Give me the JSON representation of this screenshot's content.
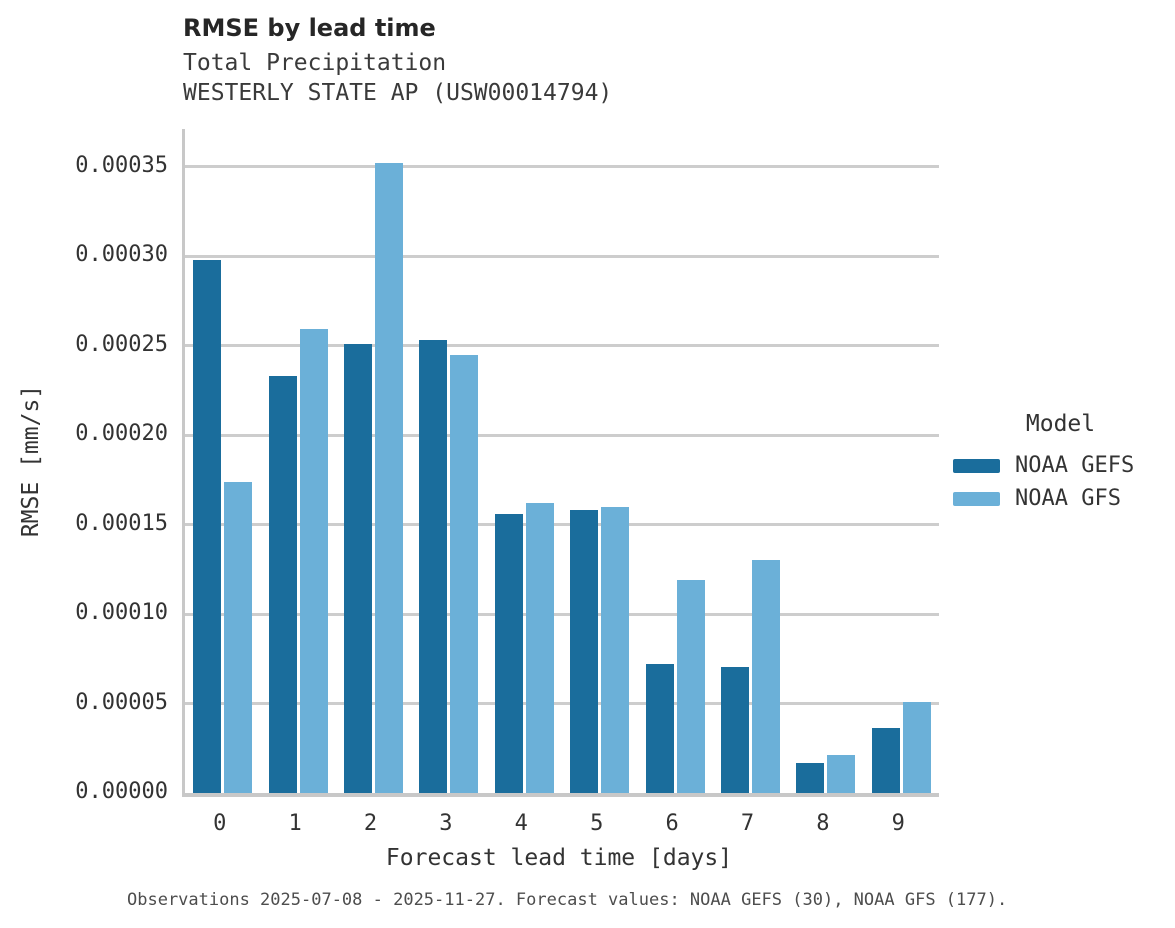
{
  "header": {
    "title": "RMSE by lead time",
    "subtitle_line1": "Total Precipitation",
    "subtitle_line2": "WESTERLY STATE AP (USW00014794)"
  },
  "footer": {
    "text": "Observations 2025-07-08 - 2025-11-27. Forecast values: NOAA GEFS (30), NOAA GFS (177)."
  },
  "legend": {
    "title": "Model",
    "items": [
      {
        "label": "NOAA GEFS",
        "color": "#1a6d9c"
      },
      {
        "label": "NOAA GFS",
        "color": "#6bb0d8"
      }
    ]
  },
  "colors": {
    "gefs_bar": "#1a6d9c",
    "gfs_bar": "#6bb0d8",
    "gridline": "#cdcdcd",
    "axis_spine": "#c8c8c8",
    "text": "#333333",
    "footer_text": "#4d4d4d"
  },
  "chart_data": {
    "type": "bar",
    "title": "RMSE by lead time",
    "subtitle": "Total Precipitation — WESTERLY STATE AP (USW00014794)",
    "xlabel": "Forecast lead time [days]",
    "ylabel": "RMSE [mm/s]",
    "categories": [
      "0",
      "1",
      "2",
      "3",
      "4",
      "5",
      "6",
      "7",
      "8",
      "9"
    ],
    "series": [
      {
        "name": "NOAA GEFS",
        "color": "#1a6d9c",
        "values": [
          0.000298,
          0.000233,
          0.000251,
          0.000253,
          0.000156,
          0.000158,
          7.2e-05,
          7.05e-05,
          1.65e-05,
          3.65e-05
        ]
      },
      {
        "name": "NOAA GFS",
        "color": "#6bb0d8",
        "values": [
          0.000174,
          0.000259,
          0.000352,
          0.000245,
          0.000162,
          0.00016,
          0.000119,
          0.00013,
          2.1e-05,
          5.1e-05
        ]
      }
    ],
    "ylim": [
      0,
      0.000371
    ],
    "yticks": [
      0.0,
      5e-05,
      0.0001,
      0.00015,
      0.0002,
      0.00025,
      0.0003,
      0.00035
    ],
    "ytick_labels": [
      "0.00000",
      "0.00005",
      "0.00010",
      "0.00015",
      "0.00020",
      "0.00025",
      "0.00030",
      "0.00035"
    ],
    "grid": "horizontal",
    "legend_position": "right",
    "legend_title": "Model"
  }
}
